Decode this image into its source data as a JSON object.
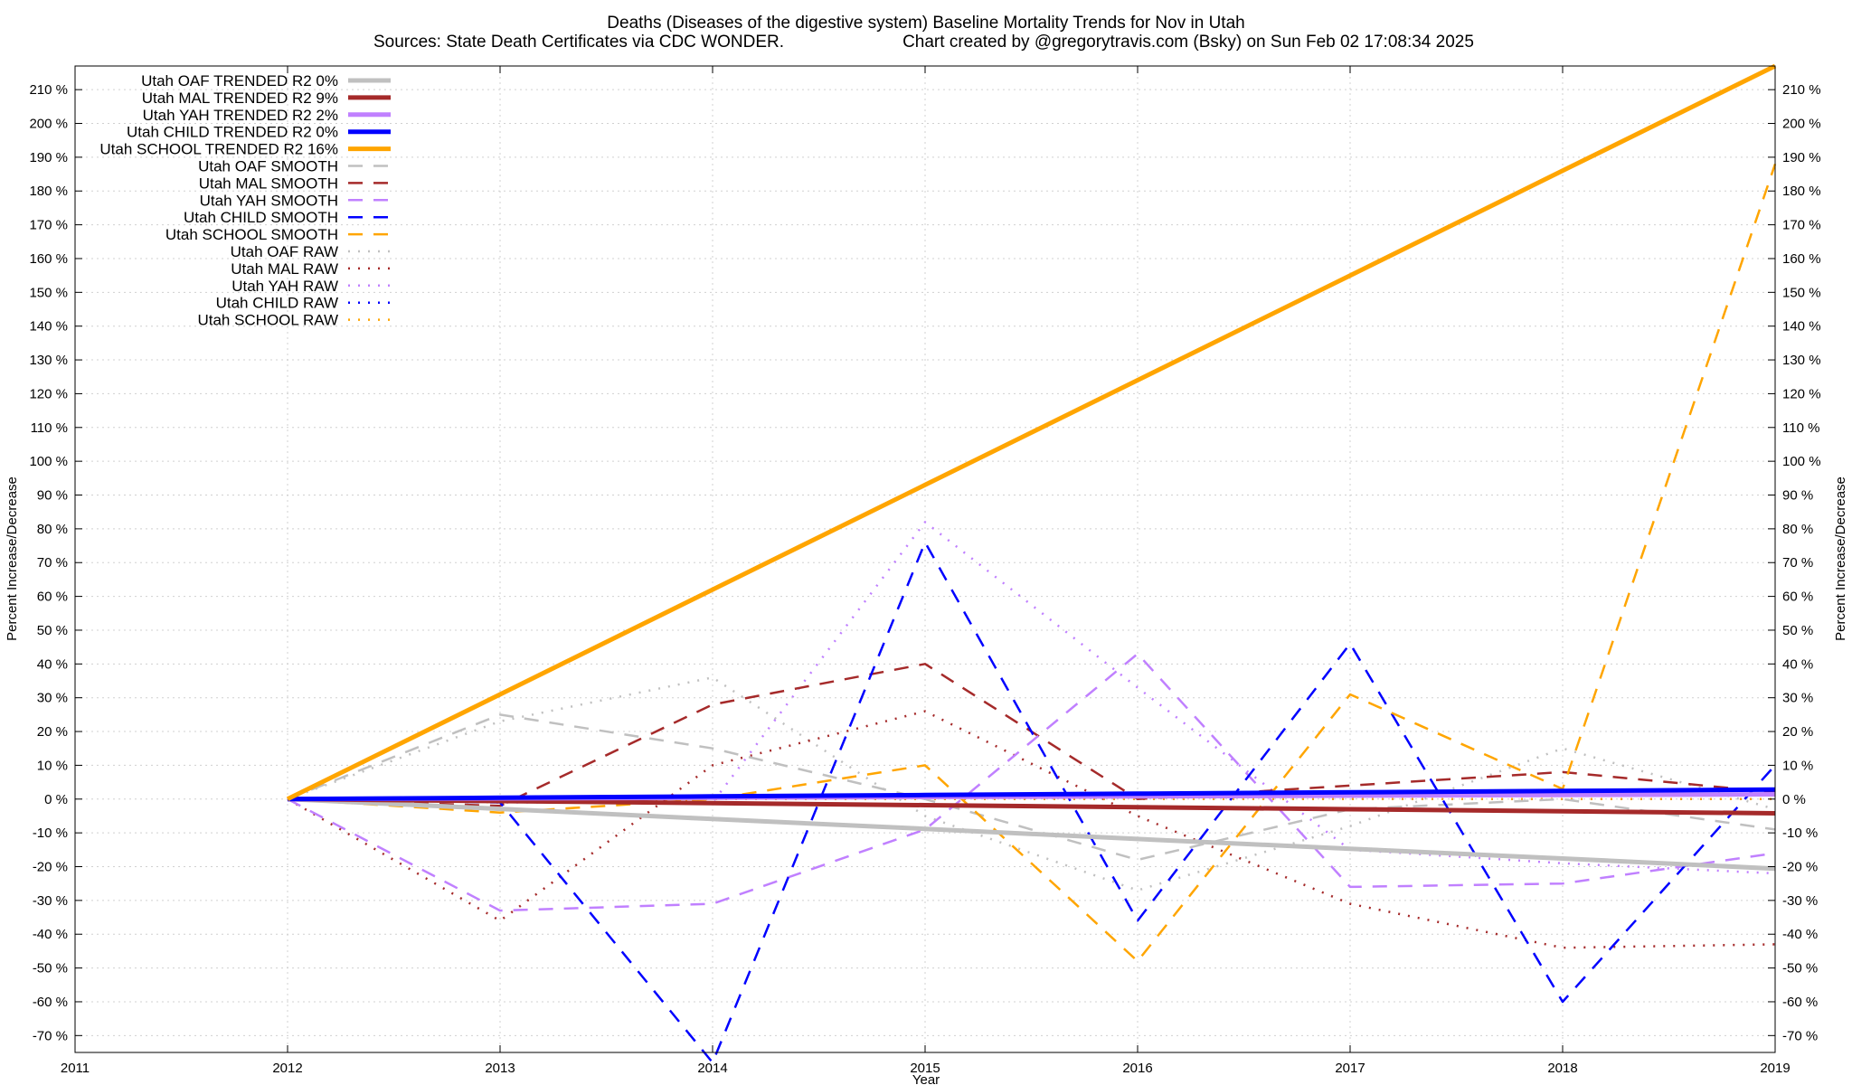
{
  "chart_data": {
    "type": "line",
    "title": "Deaths (Diseases of the digestive system)  Baseline Mortality Trends for Nov in Utah",
    "subtitle_left": "Sources: State Death Certificates via CDC WONDER.",
    "subtitle_right": "Chart created by @gregorytravis.com (Bsky) on Sun Feb 02 17:08:34 2025",
    "xlabel": "Year",
    "ylabel": "Percent Increase/Decrease",
    "xlim": [
      2011,
      2019
    ],
    "ylim": [
      -75,
      217
    ],
    "x_ticks": [
      "2011",
      "2012",
      "2013",
      "2014",
      "2015",
      "2016",
      "2017",
      "2018",
      "2019"
    ],
    "y_ticks": [
      "210 %",
      "200 %",
      "190 %",
      "180 %",
      "170 %",
      "160 %",
      "150 %",
      "140 %",
      "130 %",
      "120 %",
      "110 %",
      "100 %",
      "90 %",
      "80 %",
      "70 %",
      "60 %",
      "50 %",
      "40 %",
      "30 %",
      "20 %",
      "10 %",
      "0 %",
      "-10 %",
      "-20 %",
      "-30 %",
      "-40 %",
      "-50 %",
      "-60 %",
      "-70 %"
    ],
    "y_tick_values": [
      210,
      200,
      190,
      180,
      170,
      160,
      150,
      140,
      130,
      120,
      110,
      100,
      90,
      80,
      70,
      60,
      50,
      40,
      30,
      20,
      10,
      0,
      -10,
      -20,
      -30,
      -40,
      -50,
      -60,
      -70
    ],
    "grid": true,
    "legend_position": "top-left",
    "x": [
      2012,
      2013,
      2014,
      2015,
      2016,
      2017,
      2018,
      2019
    ],
    "series": [
      {
        "name": "Utah OAF TRENDED R2   0%",
        "style": "trend",
        "color": "#c0c0c0",
        "values": [
          0,
          -2.9,
          -5.9,
          -8.8,
          -11.8,
          -14.7,
          -17.6,
          -20.6
        ]
      },
      {
        "name": "Utah MAL TRENDED R2   9%",
        "style": "trend",
        "color": "#a52a2a",
        "values": [
          0,
          -0.6,
          -1.2,
          -1.8,
          -2.4,
          -3.0,
          -3.6,
          -4.2
        ]
      },
      {
        "name": "Utah YAH TRENDED R2   2%",
        "style": "trend",
        "color": "#c080ff",
        "values": [
          0,
          0.2,
          0.4,
          0.6,
          0.8,
          1.0,
          1.2,
          1.4
        ]
      },
      {
        "name": "Utah CHILD TRENDED R2   0%",
        "style": "trend",
        "color": "#0000ff",
        "values": [
          0,
          0.4,
          0.8,
          1.2,
          1.6,
          2.0,
          2.4,
          2.8
        ]
      },
      {
        "name": "Utah SCHOOL TRENDED R2  16%",
        "style": "trend",
        "color": "#ffa500",
        "values": [
          0,
          31,
          62,
          93,
          124,
          155,
          186,
          217
        ]
      },
      {
        "name": "Utah OAF SMOOTH",
        "style": "smooth",
        "color": "#c0c0c0",
        "values": [
          0,
          25,
          15,
          0,
          -18,
          -3,
          0,
          -9
        ]
      },
      {
        "name": "Utah MAL SMOOTH",
        "style": "smooth",
        "color": "#a52a2a",
        "values": [
          0,
          -2,
          28,
          40,
          0,
          4,
          8,
          2
        ]
      },
      {
        "name": "Utah YAH SMOOTH",
        "style": "smooth",
        "color": "#c080ff",
        "values": [
          0,
          -33,
          -31,
          -9,
          43,
          -26,
          -25,
          -16
        ]
      },
      {
        "name": "Utah CHILD SMOOTH",
        "style": "smooth",
        "color": "#0000ff",
        "values": [
          0,
          -1,
          -78,
          76,
          -36,
          46,
          -60,
          10
        ]
      },
      {
        "name": "Utah SCHOOL SMOOTH",
        "style": "smooth",
        "color": "#ffa500",
        "values": [
          0,
          -4,
          0,
          10,
          -48,
          31,
          3,
          188
        ]
      },
      {
        "name": "Utah OAF RAW",
        "style": "raw",
        "color": "#c0c0c0",
        "values": [
          0,
          23,
          36,
          -5,
          -27,
          -8,
          15,
          -3
        ]
      },
      {
        "name": "Utah MAL RAW",
        "style": "raw",
        "color": "#a52a2a",
        "values": [
          0,
          -36,
          10,
          26,
          -5,
          -31,
          -44,
          -43
        ]
      },
      {
        "name": "Utah YAH RAW",
        "style": "raw",
        "color": "#c080ff",
        "values": [
          0,
          -1,
          -1,
          82,
          33,
          -15,
          -19,
          -22
        ]
      },
      {
        "name": "Utah CHILD RAW",
        "style": "raw",
        "color": "#0000ff",
        "values": [
          0,
          0,
          0,
          0,
          0,
          0,
          0,
          0
        ]
      },
      {
        "name": "Utah SCHOOL RAW",
        "style": "raw",
        "color": "#ffa500",
        "values": [
          0,
          -1,
          0,
          0,
          0,
          0,
          0,
          0
        ]
      }
    ]
  }
}
